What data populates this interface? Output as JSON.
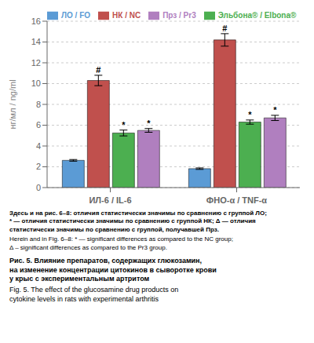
{
  "chart_data": {
    "type": "bar",
    "categories": [
      "ИЛ-6 / IL-6",
      "ФНО-α / TNF-α"
    ],
    "series": [
      {
        "name": "ЛО / FO",
        "color": "#5B9BD5",
        "values": [
          2.62,
          1.82
        ],
        "errors": [
          0.08,
          0.07
        ],
        "annotations": [
          null,
          null
        ]
      },
      {
        "name": "НК / NC",
        "color": "#C0504D",
        "values": [
          10.3,
          14.2
        ],
        "errors": [
          0.5,
          0.6
        ],
        "annotations": [
          "#",
          "#"
        ]
      },
      {
        "name": "Эльбона® / Elbona®",
        "color": "#4CAF50",
        "values": [
          5.25,
          6.3
        ],
        "errors": [
          0.28,
          0.2
        ],
        "annotations": [
          "*",
          "*"
        ]
      },
      {
        "name": "Прз / Pr3",
        "color": "#B07FBF",
        "values": [
          5.5,
          6.7
        ],
        "errors": [
          0.18,
          0.25
        ],
        "annotations": [
          "*",
          "*"
        ]
      }
    ],
    "ylabel": "нг/мл / ng/ml",
    "ylim": [
      0,
      16
    ],
    "yticks": [
      0,
      2,
      4,
      6,
      8,
      10,
      12,
      14,
      16
    ],
    "grid": true,
    "legend": "upper left",
    "notes": [
      "Здесь и на рис. 6–8: отличия статистически значимы по сравнению с группой ЛО;\n* — отличия статистически значимы по сравнению с группой НК; Δ — отличия\nстатистически значимы по сравнению с группой, получавшей Прз.",
      "Herein and in Fig. 6–8: * — significant differences as compared to the NC group;\nΔ – significant differences as compared to the Pr3 group."
    ],
    "caption": [
      "Рис. 5. Влияние препаратов, содержащих глюкозамин,\nна изменение концентрации цитокинов в сыворотке крови\nу крыс с экспериментальным артритом",
      "Fig. 5. The effect of the glucosamine drug products on\ncytokine levels in rats with experimental arthritis"
    ]
  }
}
